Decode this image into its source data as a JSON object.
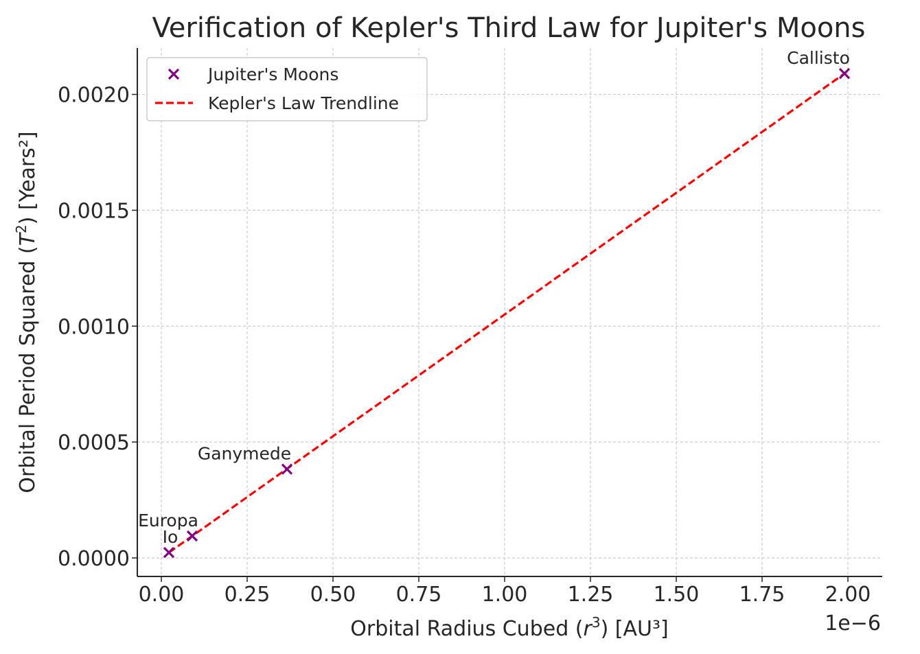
{
  "chart_data": {
    "type": "scatter",
    "title": "Verification of Kepler's Third Law for Jupiter's Moons",
    "xlabel_prefix": "Orbital Radius Cubed (",
    "xlabel_var": "r",
    "xlabel_sup": "3",
    "xlabel_suffix": ") [AU³]",
    "ylabel_prefix": "Orbital Period Squared (",
    "ylabel_var": "T",
    "ylabel_sup": "2",
    "ylabel_suffix": ") [Years²]",
    "x_offset_label": "1e−6",
    "xlim": [
      -7e-08,
      2.1e-06
    ],
    "ylim": [
      -8e-05,
      0.0022
    ],
    "x_ticks": [
      0,
      2.5e-07,
      5e-07,
      7.5e-07,
      1e-06,
      1.25e-06,
      1.5e-06,
      1.75e-06,
      2e-06
    ],
    "x_tick_labels": [
      "0.00",
      "0.25",
      "0.50",
      "0.75",
      "1.00",
      "1.25",
      "1.50",
      "1.75",
      "2.00"
    ],
    "y_ticks": [
      0,
      0.0005,
      0.001,
      0.0015,
      0.002
    ],
    "y_tick_labels": [
      "0.0000",
      "0.0005",
      "0.0010",
      "0.0015",
      "0.0020"
    ],
    "grid": true,
    "legend_position": "top-left",
    "series": [
      {
        "name": "Jupiter's Moons",
        "kind": "scatter",
        "marker": "x",
        "color": "#800080",
        "points": [
          {
            "label": "Io",
            "x": 2.2e-08,
            "y": 2.34e-05
          },
          {
            "label": "Europa",
            "x": 9e-08,
            "y": 9.45e-05
          },
          {
            "label": "Ganymede",
            "x": 3.66e-07,
            "y": 0.000383
          },
          {
            "label": "Callisto",
            "x": 1.99e-06,
            "y": 0.00209
          }
        ]
      },
      {
        "name": "Kepler's Law Trendline",
        "kind": "line",
        "style": "dashed",
        "color": "#ff0000",
        "x": [
          2.2e-08,
          1.99e-06
        ],
        "y": [
          2.31e-05,
          0.00209
        ]
      }
    ]
  }
}
